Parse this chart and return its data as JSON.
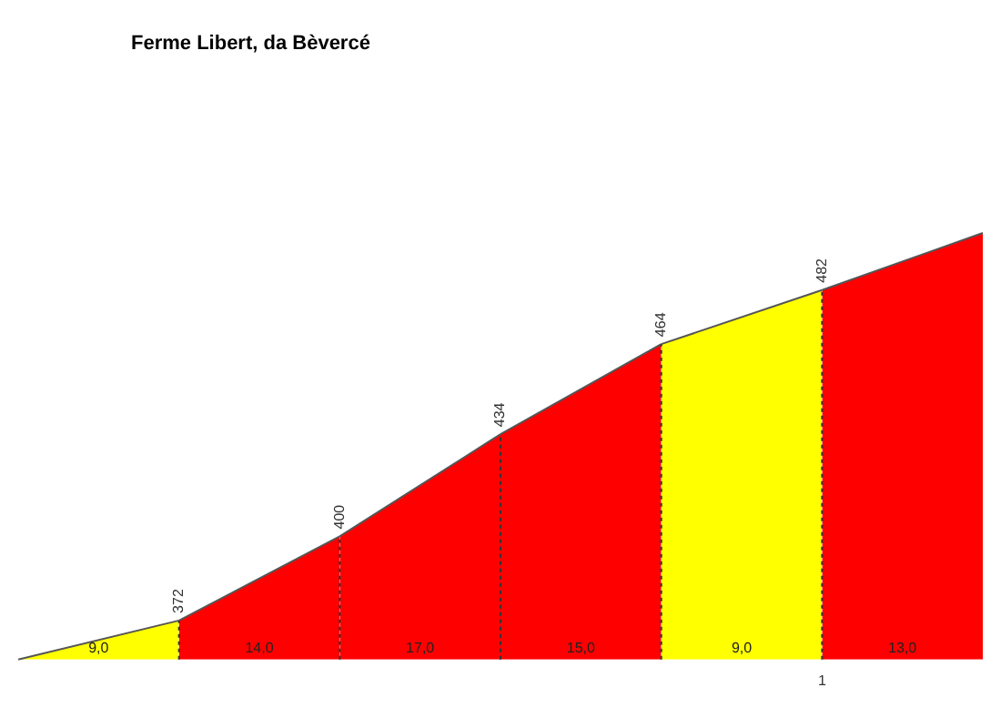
{
  "chart_data": {
    "type": "area",
    "title": "Ferme Libert, da Bèvercé",
    "categories": [
      null,
      null,
      null,
      null,
      null,
      null,
      null
    ],
    "series": [
      {
        "color": "#ffff00",
        "values": [
          359,
          372,
          null,
          null,
          null,
          null,
          null
        ],
        "value_labels": [
          null,
          null,
          null,
          null,
          null,
          null,
          null
        ]
      },
      {
        "color": "#ff0000",
        "values": [
          null,
          372,
          400,
          null,
          null,
          null,
          null
        ],
        "value_labels": [
          null,
          "372",
          null,
          null,
          null,
          null,
          null
        ]
      },
      {
        "color": "#ff0000",
        "values": [
          null,
          null,
          400,
          434,
          null,
          null,
          null
        ],
        "value_labels": [
          null,
          null,
          "400",
          null,
          null,
          null,
          null
        ]
      },
      {
        "color": "#ff0000",
        "values": [
          null,
          null,
          null,
          434,
          464,
          null,
          null
        ],
        "value_labels": [
          null,
          null,
          null,
          "434",
          null,
          null,
          null
        ]
      },
      {
        "color": "#ffff00",
        "values": [
          null,
          null,
          null,
          null,
          464,
          482,
          null
        ],
        "value_labels": [
          null,
          null,
          null,
          null,
          "464",
          null,
          null
        ]
      },
      {
        "color": "#ff0000",
        "values": [
          null,
          null,
          null,
          null,
          null,
          482,
          501
        ],
        "value_labels": [
          null,
          null,
          null,
          null,
          null,
          "482",
          null
        ]
      }
    ],
    "annotations": [
      {
        "text": "9,0"
      },
      {
        "text": "14,0"
      },
      {
        "text": "17,0"
      },
      {
        "text": "15,0"
      },
      {
        "text": "9,0"
      },
      {
        "text": "13,0"
      },
      "1"
    ],
    "tick_labels": "x",
    "grid": false,
    "legend": false,
    "marker": "none"
  }
}
